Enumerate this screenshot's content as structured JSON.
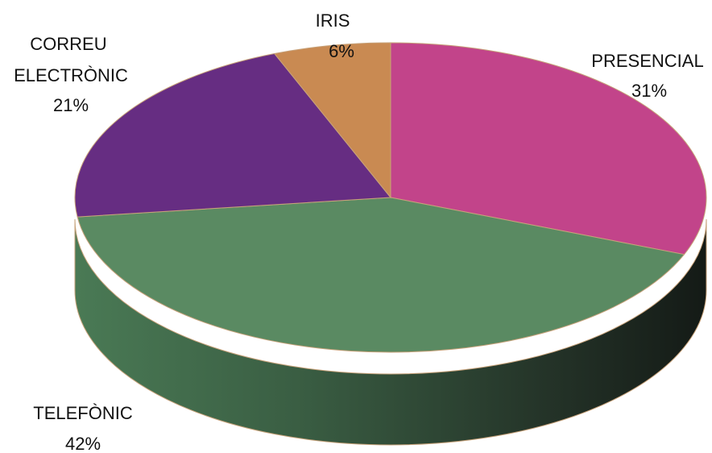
{
  "chart_data": {
    "type": "pie",
    "title": "",
    "slices": [
      {
        "label": "PRESENCIAL",
        "value": 31,
        "value_label": "31%",
        "color": "#c2448a"
      },
      {
        "label": "TELEFÒNIC",
        "value": 42,
        "value_label": "42%",
        "color": "#5a8a62"
      },
      {
        "label": "CORREU ELECTRÒNIC",
        "value": 21,
        "value_label": "21%",
        "color": "#662d82"
      },
      {
        "label": "IRIS",
        "value": 6,
        "value_label": "6%",
        "color": "#c98a52"
      }
    ],
    "style": "3d",
    "legend": "none"
  }
}
